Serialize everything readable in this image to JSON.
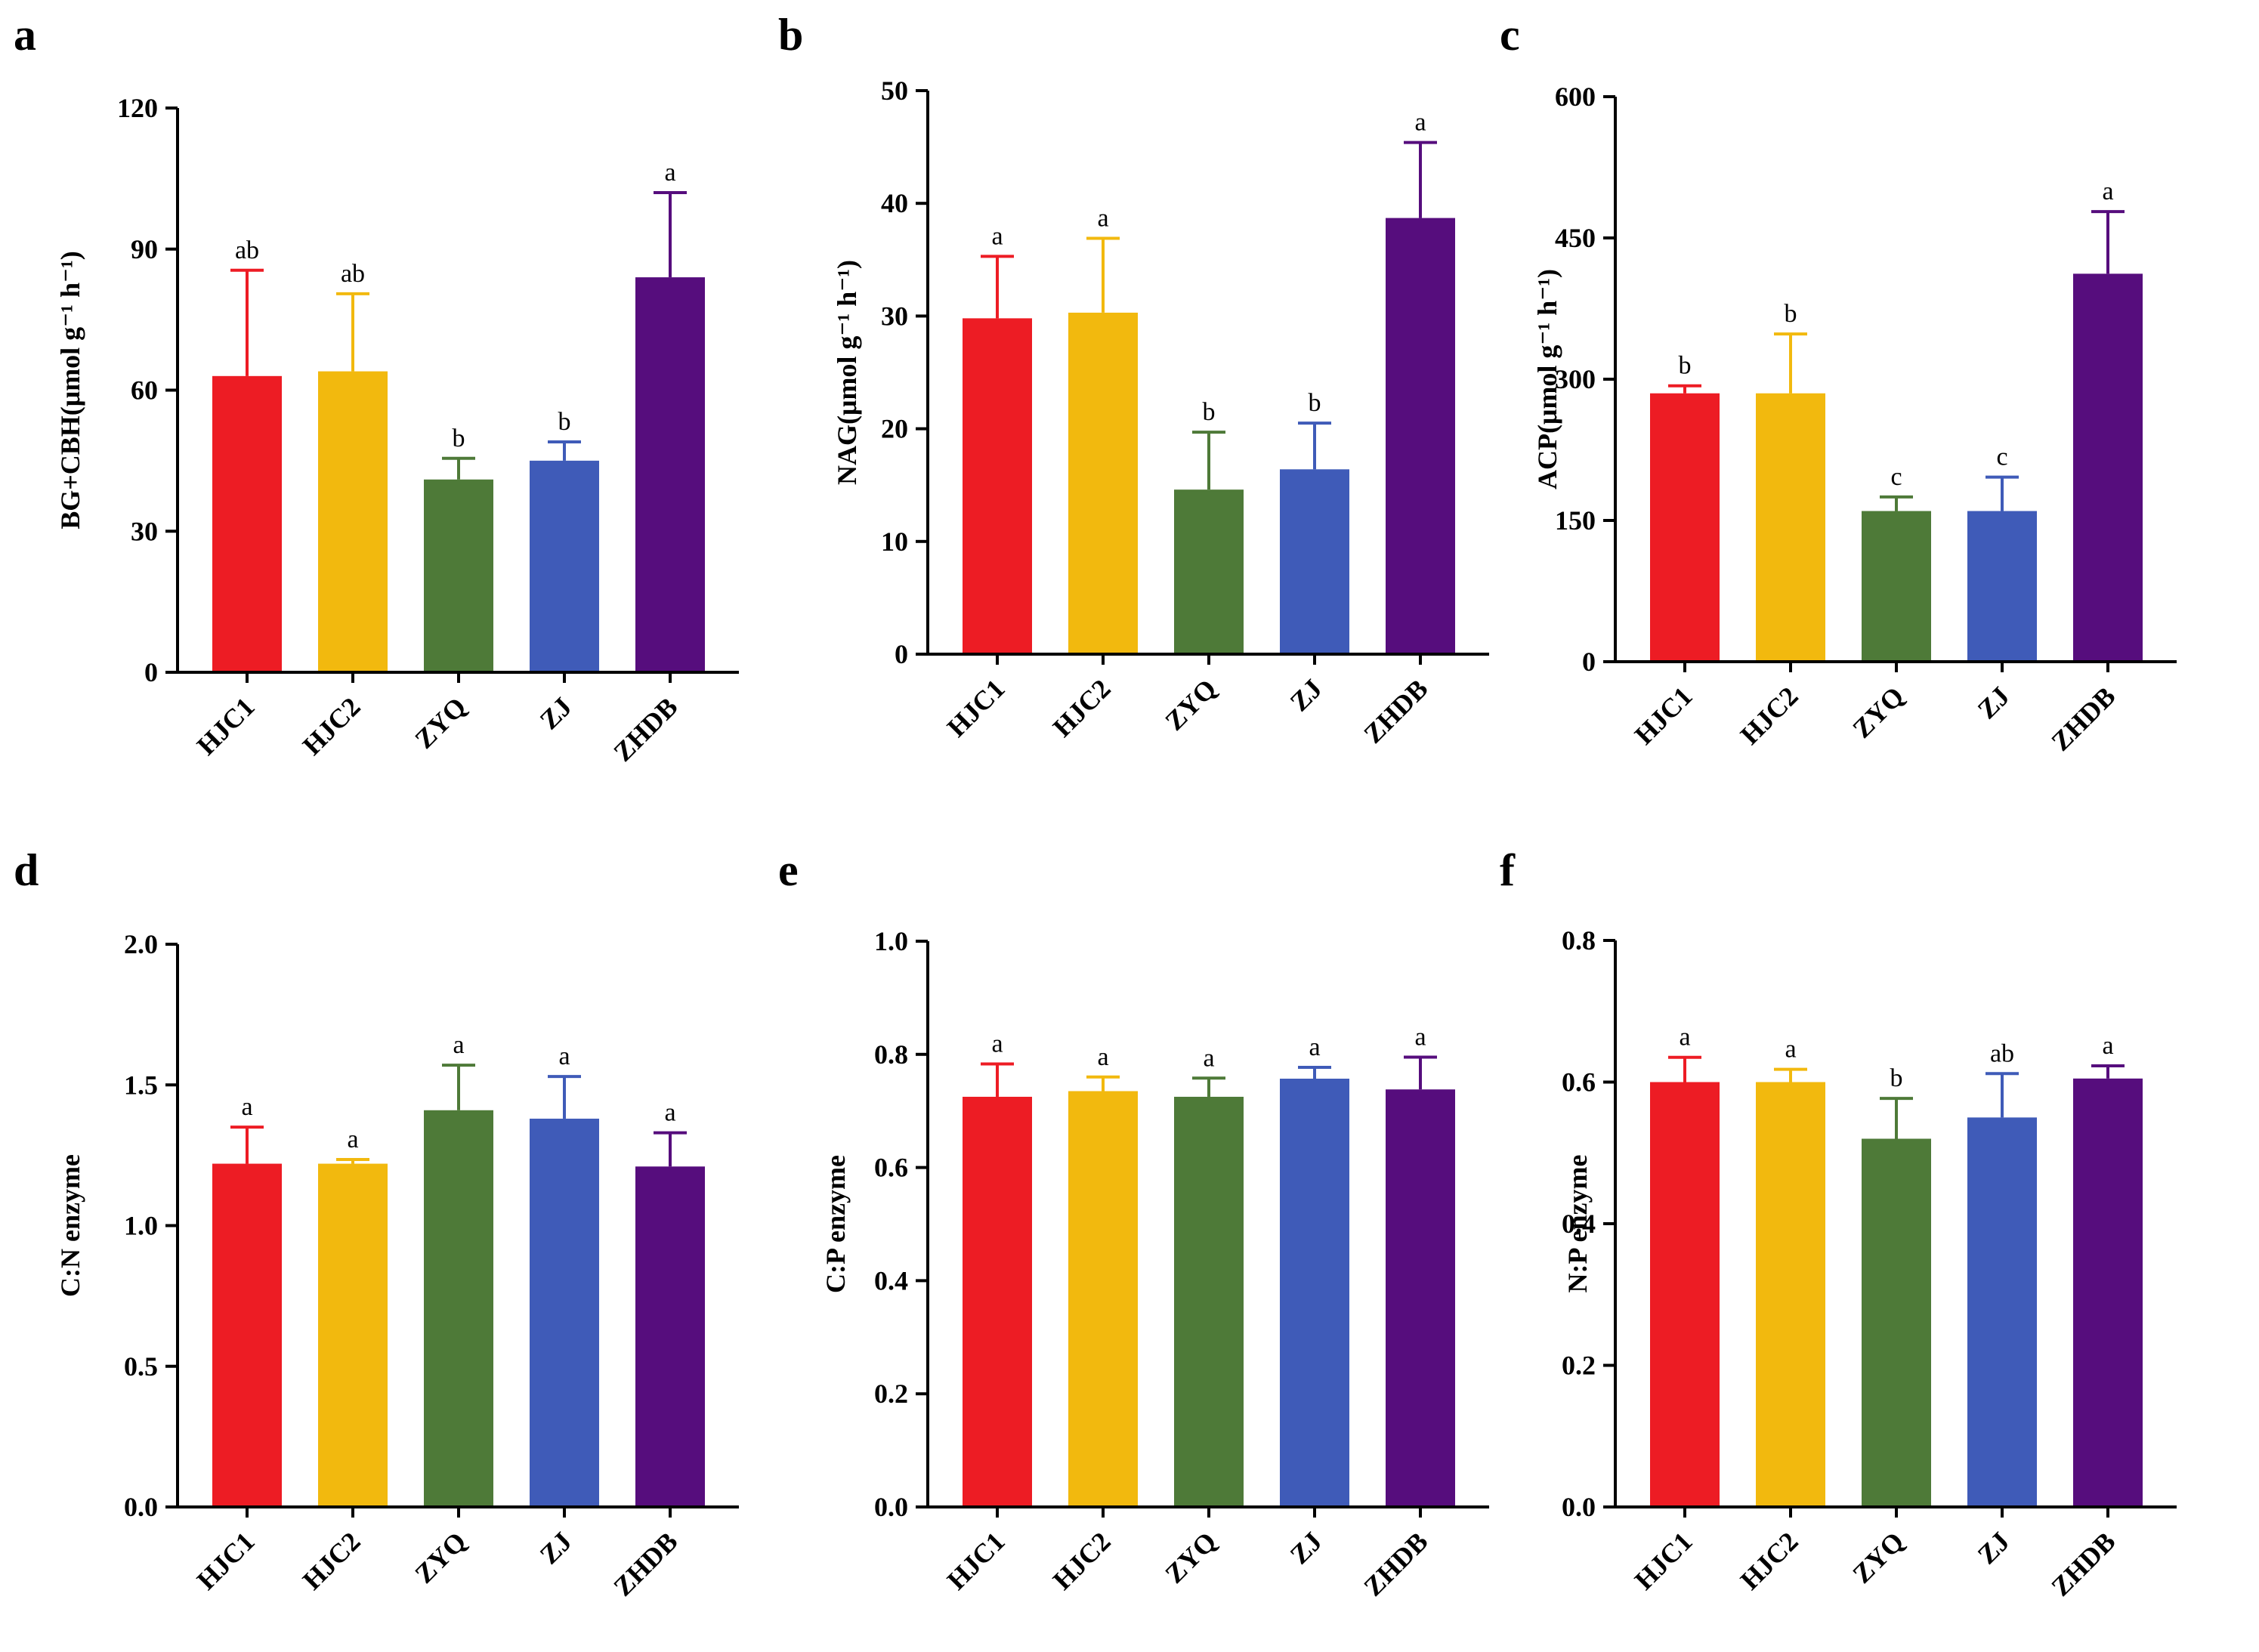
{
  "chart_data": [
    {
      "panel": "a",
      "type": "bar",
      "ylabel": "BG+CBH(μmol g⁻¹ h⁻¹)",
      "ylim": [
        0,
        120
      ],
      "yticks": [
        "0",
        "30",
        "60",
        "90",
        "120"
      ],
      "categories": [
        "HJC1",
        "HJC2",
        "ZYQ",
        "ZJ",
        "ZHDB"
      ],
      "values": [
        63,
        64,
        41,
        45,
        84
      ],
      "errors": [
        22.5,
        16.5,
        4.5,
        4,
        18
      ],
      "significance": [
        "ab",
        "ab",
        "b",
        "b",
        "a"
      ],
      "colors": [
        "#ED1C24",
        "#F2B90E",
        "#4E7A38",
        "#3F5BB8",
        "#560D7D"
      ]
    },
    {
      "panel": "b",
      "type": "bar",
      "ylabel": "NAG(μmol g⁻¹ h⁻¹)",
      "ylim": [
        0,
        50
      ],
      "yticks": [
        "0",
        "10",
        "20",
        "30",
        "40",
        "50"
      ],
      "categories": [
        "HJC1",
        "HJC2",
        "ZYQ",
        "ZJ",
        "ZHDB"
      ],
      "values": [
        29.8,
        30.3,
        14.6,
        16.4,
        38.7
      ],
      "errors": [
        5.5,
        6.6,
        5.1,
        4.1,
        6.7
      ],
      "significance": [
        "a",
        "a",
        "b",
        "b",
        "a"
      ],
      "colors": [
        "#ED1C24",
        "#F2B90E",
        "#4E7A38",
        "#3F5BB8",
        "#560D7D"
      ]
    },
    {
      "panel": "c",
      "type": "bar",
      "ylabel": "ACP(μmol g⁻¹ h⁻¹)",
      "ylim": [
        0,
        600
      ],
      "yticks": [
        "0",
        "150",
        "300",
        "450",
        "600"
      ],
      "categories": [
        "HJC1",
        "HJC2",
        "ZYQ",
        "ZJ",
        "ZHDB"
      ],
      "values": [
        285,
        285,
        160,
        160,
        412
      ],
      "errors": [
        8,
        63,
        15,
        36,
        66
      ],
      "significance": [
        "b",
        "b",
        "c",
        "c",
        "a"
      ],
      "colors": [
        "#ED1C24",
        "#F2B90E",
        "#4E7A38",
        "#3F5BB8",
        "#560D7D"
      ]
    },
    {
      "panel": "d",
      "type": "bar",
      "ylabel": "C:N enzyme",
      "ylim": [
        0,
        2.0
      ],
      "yticks": [
        "0.0",
        "0.5",
        "1.0",
        "1.5",
        "2.0"
      ],
      "categories": [
        "HJC1",
        "HJC2",
        "ZYQ",
        "ZJ",
        "ZHDB"
      ],
      "values": [
        1.22,
        1.22,
        1.41,
        1.38,
        1.21
      ],
      "errors": [
        0.13,
        0.015,
        0.16,
        0.15,
        0.12
      ],
      "significance": [
        "a",
        "a",
        "a",
        "a",
        "a"
      ],
      "colors": [
        "#ED1C24",
        "#F2B90E",
        "#4E7A38",
        "#3F5BB8",
        "#560D7D"
      ]
    },
    {
      "panel": "e",
      "type": "bar",
      "ylabel": "C:P enzyme",
      "ylim": [
        0,
        1.0
      ],
      "yticks": [
        "0.0",
        "0.2",
        "0.4",
        "0.6",
        "0.8",
        "1.0"
      ],
      "categories": [
        "HJC1",
        "HJC2",
        "ZYQ",
        "ZJ",
        "ZHDB"
      ],
      "values": [
        0.725,
        0.735,
        0.725,
        0.757,
        0.738
      ],
      "errors": [
        0.058,
        0.025,
        0.033,
        0.02,
        0.057
      ],
      "significance": [
        "a",
        "a",
        "a",
        "a",
        "a"
      ],
      "colors": [
        "#ED1C24",
        "#F2B90E",
        "#4E7A38",
        "#3F5BB8",
        "#560D7D"
      ]
    },
    {
      "panel": "f",
      "type": "bar",
      "ylabel": "N:P enzyme",
      "ylim": [
        0,
        0.8
      ],
      "yticks": [
        "0.0",
        "0.2",
        "0.4",
        "0.6",
        "0.8"
      ],
      "categories": [
        "HJC1",
        "HJC2",
        "ZYQ",
        "ZJ",
        "ZHDB"
      ],
      "values": [
        0.6,
        0.6,
        0.52,
        0.55,
        0.605
      ],
      "errors": [
        0.035,
        0.018,
        0.057,
        0.062,
        0.018
      ],
      "significance": [
        "a",
        "a",
        "b",
        "ab",
        "a"
      ],
      "colors": [
        "#ED1C24",
        "#F2B90E",
        "#4E7A38",
        "#3F5BB8",
        "#560D7D"
      ]
    }
  ]
}
